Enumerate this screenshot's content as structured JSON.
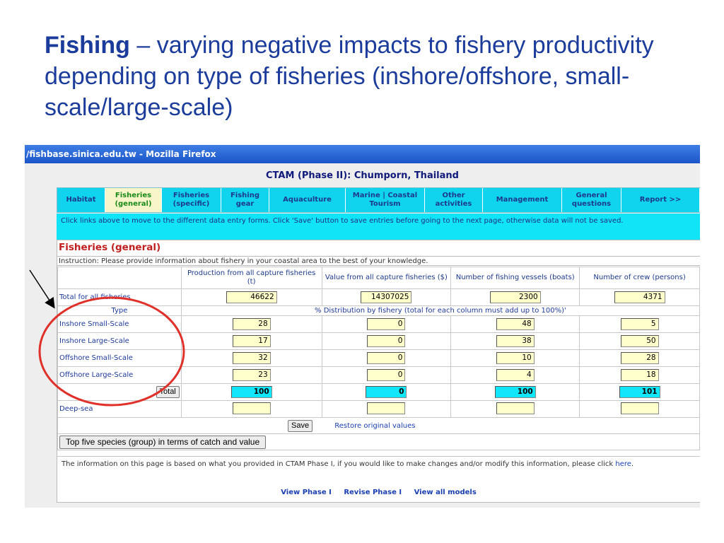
{
  "slide": {
    "title_bold": "Fishing",
    "title_rest": " – varying negative impacts to fishery productivity depending on type of fisheries (inshore/offshore, small-scale/large-scale)"
  },
  "window": {
    "title": "/fishbase.sinica.edu.tw - Mozilla Firefox"
  },
  "app": {
    "title": "CTAM (Phase II): Chumporn, Thailand"
  },
  "tabs": [
    {
      "label": "Habitat"
    },
    {
      "label": "Fisheries (general)"
    },
    {
      "label": "Fisheries (specific)"
    },
    {
      "label": "Fishing gear"
    },
    {
      "label": "Aquaculture"
    },
    {
      "label": "Marine | Coastal Tourism"
    },
    {
      "label": "Other activities"
    },
    {
      "label": "Management"
    },
    {
      "label": "General questions"
    },
    {
      "label": "Report >>"
    }
  ],
  "notice": "Click links above to move to the different data entry forms. Click 'Save' button to save entries before going to the next page, otherwise data will not be saved.",
  "section": {
    "title": "Fisheries (general)",
    "instruction": "Instruction: Please provide information about fishery in your coastal area to the best of your knowledge."
  },
  "columns": [
    "Production from all capture fisheries (t)",
    "Value from all capture fisheries ($)",
    "Number of fishing vessels (boats)",
    "Number of crew (persons)"
  ],
  "totals_row": {
    "label": "Total for all fisheries",
    "values": [
      "46622",
      "14307025",
      "2300",
      "4371"
    ]
  },
  "type_header": "Type",
  "distribution_header": "% Distribution by fishery (total for each column must add up to 100%)'",
  "rows": [
    {
      "label": "Inshore Small-Scale",
      "values": [
        "28",
        "0",
        "48",
        "5"
      ]
    },
    {
      "label": "Inshore Large-Scale",
      "values": [
        "17",
        "0",
        "38",
        "50"
      ]
    },
    {
      "label": "Offshore Small-Scale",
      "values": [
        "32",
        "0",
        "10",
        "28"
      ]
    },
    {
      "label": "Offshore Large-Scale",
      "values": [
        "23",
        "0",
        "4",
        "18"
      ]
    }
  ],
  "total_button": "Total",
  "total_values": [
    "100",
    "0",
    "100",
    "101"
  ],
  "deep_sea": {
    "label": "Deep-sea",
    "values": [
      "",
      "",
      "",
      ""
    ]
  },
  "save_button": "Save",
  "restore_link": "Restore original values",
  "species_button": "Top five species (group) in terms of catch and value",
  "footer": {
    "text": "The information on this page is based on what you provided in CTAM Phase I, if you would like to make changes and/or modify this information, please click ",
    "here_link": "here",
    "period": ".",
    "links": [
      "View Phase I",
      "Revise Phase I",
      "View all models"
    ]
  },
  "colors": {
    "tab_bar": "#10d4ee",
    "active_tab": "#f8f6c8",
    "title_blue": "#1c3c9c",
    "annotation_red": "#e0302a"
  }
}
